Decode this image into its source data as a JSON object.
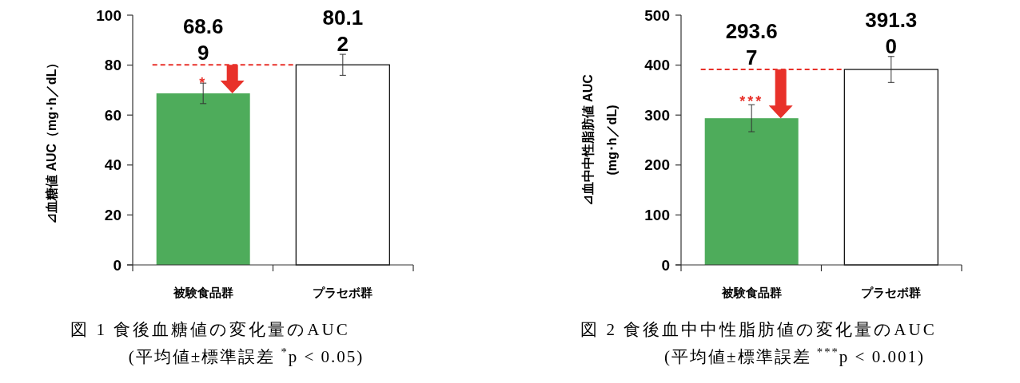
{
  "chart_data": [
    {
      "type": "bar",
      "title": "図 1 食後血糖値の変化量のAUC",
      "subtitle": "(平均値±標準誤差 $^{*}$p < 0.05)",
      "ylabel": "⊿血糖値 AUC（mg･h／dL）",
      "categories": [
        "被験食品群",
        "プラセボ群"
      ],
      "values": [
        68.69,
        80.12
      ],
      "colors": [
        "#4eac5b",
        "#ffffff"
      ],
      "errors": [
        4.1,
        4.2
      ],
      "value_labels": [
        "68.69",
        "80.12"
      ],
      "ylim": [
        0,
        100
      ],
      "yticks": [
        0,
        20,
        40,
        60,
        80,
        100
      ],
      "ref_lines": [
        {
          "axis": "y",
          "value": 80.12,
          "color": "#e8312a",
          "line_style": "dashed"
        }
      ],
      "annotations": [
        {
          "text": "*",
          "x": "被験食品群",
          "y": 73
        }
      ]
    },
    {
      "type": "bar",
      "title": "図 2 食後血中中性脂肪値の変化量のAUC",
      "subtitle": "(平均値±標準誤差 $^{***}$p < 0.001)",
      "ylabel": "⊿血中中性脂肪値 AUC\n(mg･h／dL)",
      "categories": [
        "被験食品群",
        "プラセボ群"
      ],
      "values": [
        293.67,
        391.3
      ],
      "colors": [
        "#4eac5b",
        "#ffffff"
      ],
      "errors": [
        27,
        26
      ],
      "value_labels": [
        "293.67",
        "391.30"
      ],
      "ylim": [
        0,
        500
      ],
      "yticks": [
        0,
        100,
        200,
        300,
        400,
        500
      ],
      "ref_lines": [
        {
          "axis": "y",
          "value": 391.3,
          "color": "#e8312a",
          "line_style": "dashed"
        }
      ],
      "annotations": [
        {
          "text": "***",
          "x": "被験食品群",
          "y": 328
        }
      ]
    }
  ]
}
